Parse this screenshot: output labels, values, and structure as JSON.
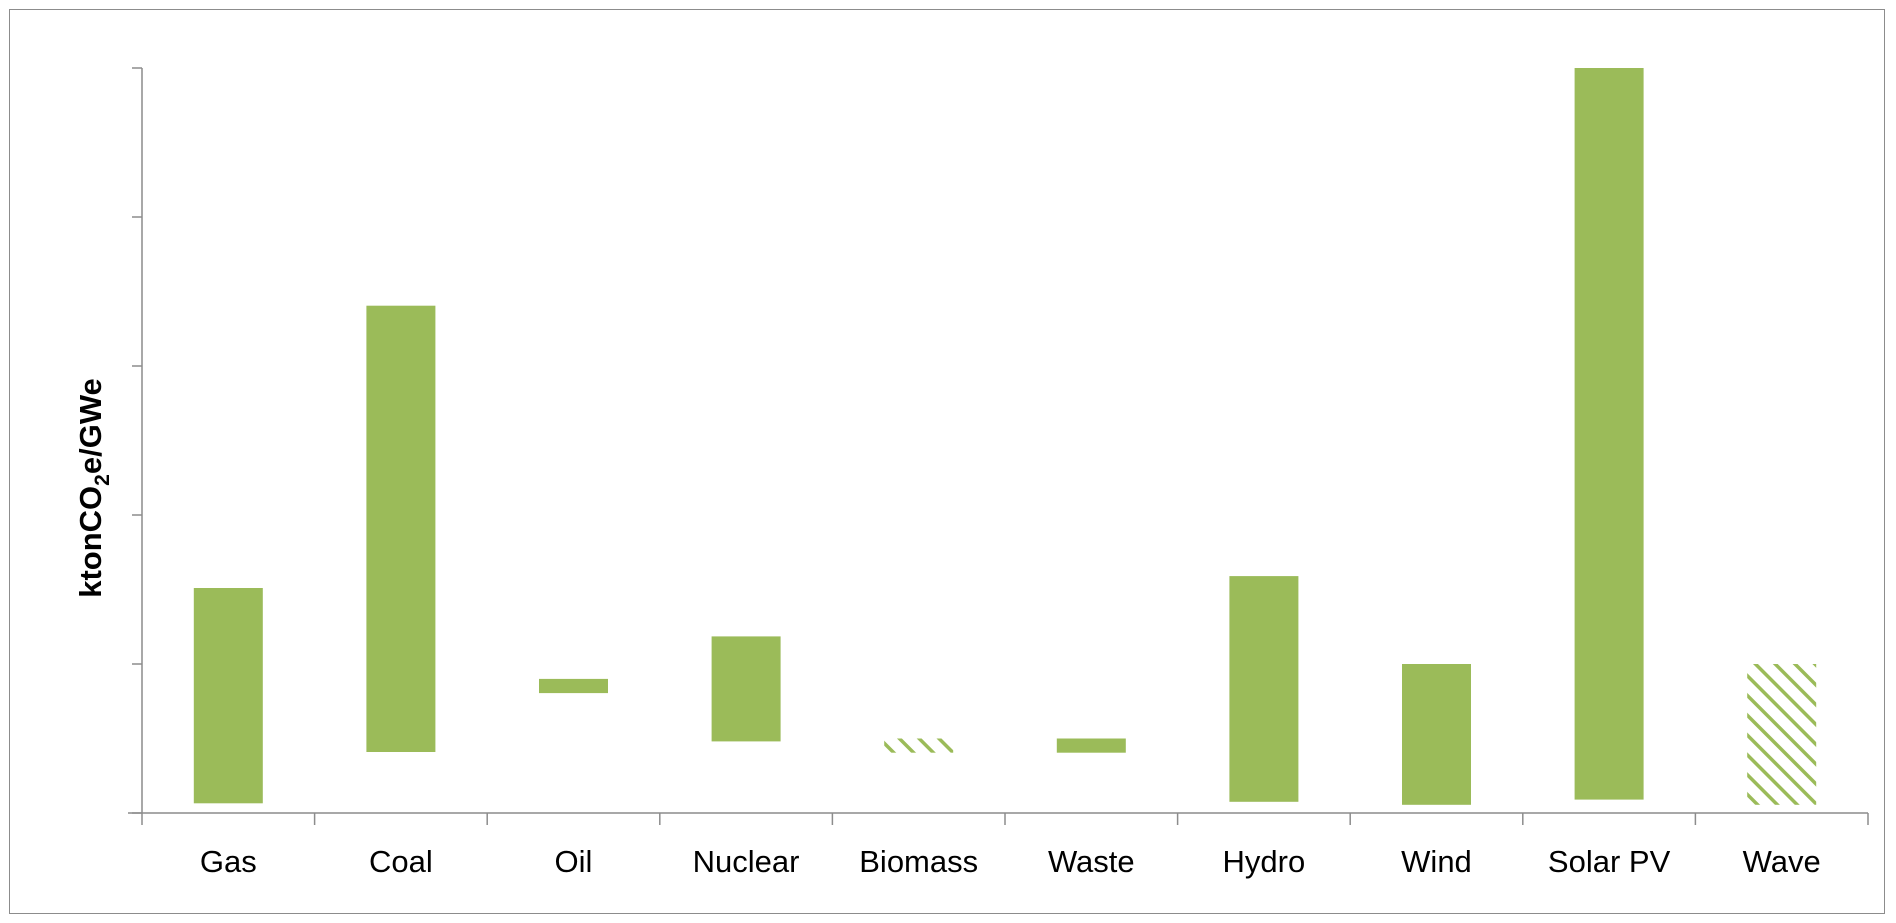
{
  "chart_data": {
    "type": "bar",
    "subtype": "floating-range",
    "title": "",
    "xlabel": "",
    "ylabel": {
      "prefix": "ktonCO",
      "subscript": "2",
      "suffix": "e/GWe"
    },
    "ylim": [
      0,
      100
    ],
    "y_ticks": [
      0,
      20,
      40,
      60,
      80,
      100
    ],
    "y_tick_labels_shown": false,
    "grid": false,
    "legend": "none",
    "colors": {
      "bar": "#9bbb59",
      "axis": "#8c8c8c",
      "frame": "#8c8c8c"
    },
    "categories": [
      "Gas",
      "Coal",
      "Oil",
      "Nuclear",
      "Biomass",
      "Waste",
      "Hydro",
      "Wind",
      "Solar PV",
      "Wave"
    ],
    "series": [
      {
        "ranges": [
          {
            "low": 1.3,
            "high": 30.2,
            "fill": "solid"
          },
          {
            "low": 8.2,
            "high": 68.1,
            "fill": "solid"
          },
          {
            "low": 16.1,
            "high": 18.0,
            "fill": "solid"
          },
          {
            "low": 9.6,
            "high": 23.7,
            "fill": "solid"
          },
          {
            "low": 8.1,
            "high": 10.0,
            "fill": "hatched"
          },
          {
            "low": 8.1,
            "high": 10.0,
            "fill": "solid"
          },
          {
            "low": 1.5,
            "high": 31.8,
            "fill": "solid"
          },
          {
            "low": 1.1,
            "high": 20.0,
            "fill": "solid"
          },
          {
            "low": 1.8,
            "high": 100.0,
            "fill": "solid"
          },
          {
            "low": 1.1,
            "high": 20.0,
            "fill": "hatched"
          }
        ]
      }
    ]
  }
}
